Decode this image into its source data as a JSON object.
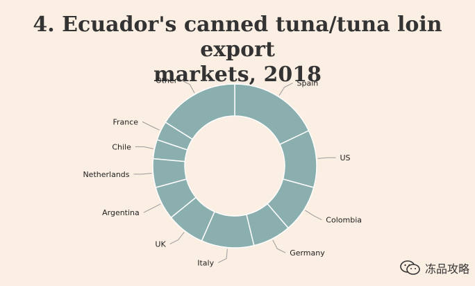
{
  "title_line1": "4. Ecuador's canned tuna/tuna loin export",
  "title_line2": "markets, 2018",
  "colors": {
    "slice": "#8aafae",
    "slice_border": "#ffffff",
    "leader": "#9a9a9a",
    "background": "#fbeee3"
  },
  "chart_data": {
    "type": "donut",
    "title": "4. Ecuador's canned tuna/tuna loin export markets, 2018",
    "slices": [
      {
        "label": "Spain",
        "value": 19
      },
      {
        "label": "US",
        "value": 12
      },
      {
        "label": "Colombia",
        "value": 10
      },
      {
        "label": "Germany",
        "value": 8
      },
      {
        "label": "Italy",
        "value": 11
      },
      {
        "label": "UK",
        "value": 8
      },
      {
        "label": "Argentina",
        "value": 7
      },
      {
        "label": "Netherlands",
        "value": 6
      },
      {
        "label": "Chile",
        "value": 4
      },
      {
        "label": "France",
        "value": 4
      },
      {
        "label": "Other",
        "value": 17
      }
    ]
  },
  "watermark": {
    "text": "冻品攻略",
    "icon": "wechat-icon"
  }
}
